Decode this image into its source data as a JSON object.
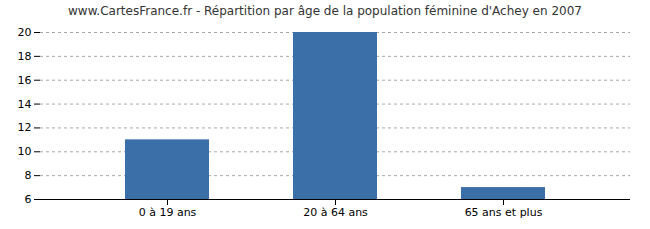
{
  "chart_data": {
    "type": "bar",
    "title": "www.CartesFrance.fr - Répartition par âge de la population féminine d'Achey en 2007",
    "categories": [
      "0 à 19 ans",
      "20 à 64 ans",
      "65 ans et plus"
    ],
    "values": [
      11,
      20,
      7
    ],
    "color": "#3a6fa8",
    "ylim": [
      6,
      20
    ],
    "yticks": [
      6,
      8,
      10,
      12,
      14,
      16,
      18,
      20
    ],
    "grid": true
  }
}
